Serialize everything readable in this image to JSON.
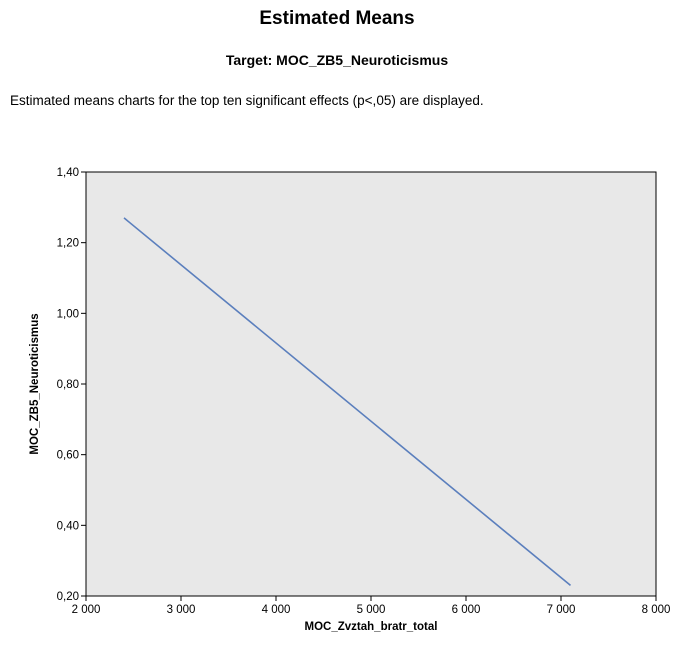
{
  "header": {
    "title": "Estimated Means",
    "subtitle": "Target: MOC_ZB5_Neuroticismus",
    "note": "Estimated means charts for the top ten significant effects (p<,05) are displayed."
  },
  "colors": {
    "plot_background": "#e8e8e8",
    "line": "#5b7fbd",
    "axis": "#000000"
  },
  "chart_data": {
    "type": "line",
    "title": "",
    "xlabel": "MOC_Zvztah_bratr_total",
    "ylabel": "MOC_ZB5_Neuroticismus",
    "xlim": [
      2000,
      8000
    ],
    "ylim": [
      0.2,
      1.4
    ],
    "x_ticks": [
      2000,
      3000,
      4000,
      5000,
      6000,
      7000,
      8000
    ],
    "x_tick_labels": [
      "2 000",
      "3 000",
      "4 000",
      "5 000",
      "6 000",
      "7 000",
      "8 000"
    ],
    "y_ticks": [
      0.2,
      0.4,
      0.6,
      0.8,
      1.0,
      1.2,
      1.4
    ],
    "y_tick_labels": [
      "0,20",
      "0,40",
      "0,60",
      "0,80",
      "1,00",
      "1,20",
      "1,40"
    ],
    "grid": false,
    "series": [
      {
        "x": [
          2400,
          7100
        ],
        "y": [
          1.27,
          0.23
        ]
      }
    ]
  }
}
